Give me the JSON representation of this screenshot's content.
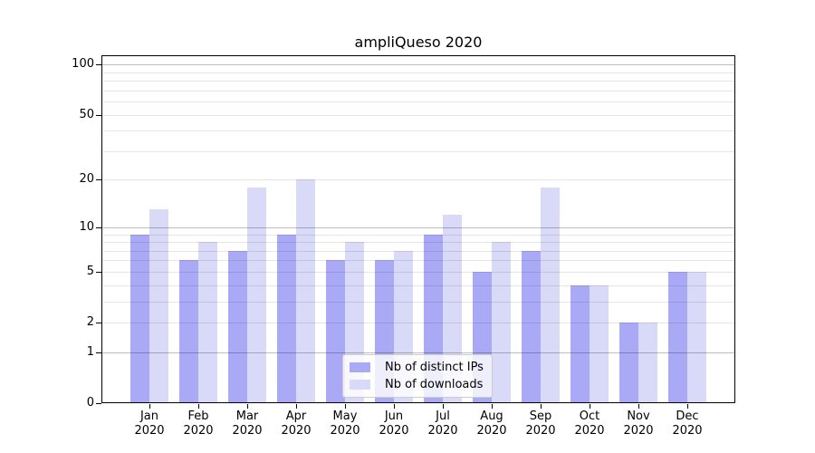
{
  "title": "ampliQueso 2020",
  "chart_data": {
    "type": "bar",
    "title": "ampliQueso 2020",
    "categories": [
      "Jan 2020",
      "Feb 2020",
      "Mar 2020",
      "Apr 2020",
      "May 2020",
      "Jun 2020",
      "Jul 2020",
      "Aug 2020",
      "Sep 2020",
      "Oct 2020",
      "Nov 2020",
      "Dec 2020"
    ],
    "series": [
      {
        "name": "Nb of distinct IPs",
        "color": "#a9a9f6",
        "values": [
          9,
          6,
          7,
          9,
          6,
          6,
          9,
          5,
          7,
          4,
          2,
          5
        ]
      },
      {
        "name": "Nb of downloads",
        "color": "#d9d9f8",
        "values": [
          13,
          8,
          18,
          20,
          8,
          7,
          12,
          8,
          18,
          4,
          2,
          5
        ]
      }
    ],
    "yscale": "log1p",
    "ylim": [
      0,
      113
    ],
    "yticks": [
      0,
      1,
      2,
      5,
      10,
      20,
      50,
      100
    ],
    "ytick_labels": [
      "0",
      "1",
      "2",
      "5",
      "10",
      "20",
      "50",
      "100"
    ],
    "major_gridlines": [
      1,
      10,
      100
    ],
    "minor_gridlines": [
      3,
      4,
      6,
      7,
      8,
      9,
      30,
      40,
      60,
      70,
      80,
      90
    ],
    "grid": true,
    "legend_position": "lower center"
  },
  "colors": {
    "background": "#ffffff",
    "axis": "#000000",
    "grid_major": "rgba(0,0,0,0.26)",
    "grid_minor": "rgba(0,0,0,0.10)",
    "legend_border": "#cccccc",
    "legend_background": "rgba(255,255,255,0.8)",
    "text": "#000000"
  }
}
